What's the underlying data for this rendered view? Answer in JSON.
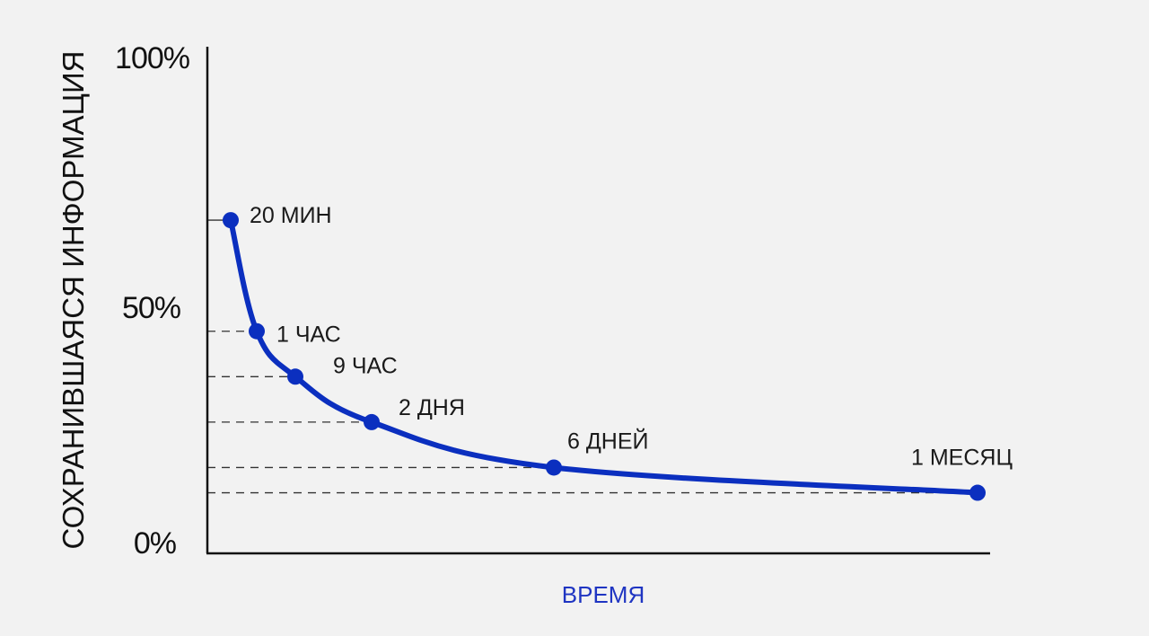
{
  "chart_data": {
    "type": "line",
    "xlabel": "ВРЕМЯ",
    "ylabel": "СОХРАНИВШАЯСЯ ИНФОРМАЦИЯ",
    "y_ticks": [
      "100%",
      "50%",
      "0%"
    ],
    "ylim": [
      0,
      100
    ],
    "grid": false,
    "reference_lines": "dashed, from the y-axis to each point",
    "colors": {
      "line": "#0b2fbf",
      "axis": "#111111",
      "xlabel": "#1f35c2"
    },
    "series": [
      {
        "values": [
          {
            "label": "20 МИН",
            "y": 66
          },
          {
            "label": "1 ЧАС",
            "y": 44
          },
          {
            "label": "9 ЧАС",
            "y": 35
          },
          {
            "label": "2 ДНЯ",
            "y": 26
          },
          {
            "label": "6 ДНЕЙ",
            "y": 17
          },
          {
            "label": "1 МЕСЯЦ",
            "y": 12
          }
        ]
      }
    ]
  }
}
